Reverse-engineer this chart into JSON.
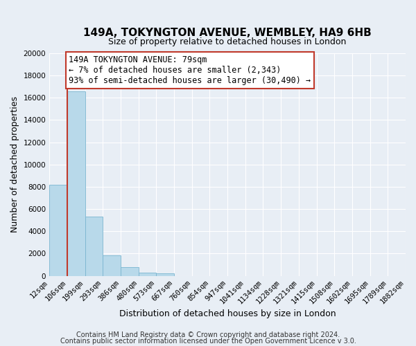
{
  "title": "149A, TOKYNGTON AVENUE, WEMBLEY, HA9 6HB",
  "subtitle": "Size of property relative to detached houses in London",
  "xlabel": "Distribution of detached houses by size in London",
  "ylabel": "Number of detached properties",
  "bar_values": [
    8200,
    16600,
    5300,
    1850,
    800,
    300,
    250,
    0,
    0,
    0,
    0,
    0,
    0,
    0,
    0,
    0,
    0,
    0,
    0,
    0
  ],
  "categories": [
    "12sqm",
    "106sqm",
    "199sqm",
    "293sqm",
    "386sqm",
    "480sqm",
    "573sqm",
    "667sqm",
    "760sqm",
    "854sqm",
    "947sqm",
    "1041sqm",
    "1134sqm",
    "1228sqm",
    "1321sqm",
    "1415sqm",
    "1508sqm",
    "1602sqm",
    "1695sqm",
    "1789sqm",
    "1882sqm"
  ],
  "bar_color": "#b8d9ea",
  "bar_edge_color": "#7ab5d0",
  "vline_color": "#c0392b",
  "annotation_title": "149A TOKYNGTON AVENUE: 79sqm",
  "annotation_line1": "← 7% of detached houses are smaller (2,343)",
  "annotation_line2": "93% of semi-detached houses are larger (30,490) →",
  "annotation_box_edge": "#c0392b",
  "ylim": [
    0,
    20000
  ],
  "yticks": [
    0,
    2000,
    4000,
    6000,
    8000,
    10000,
    12000,
    14000,
    16000,
    18000,
    20000
  ],
  "footer1": "Contains HM Land Registry data © Crown copyright and database right 2024.",
  "footer2": "Contains public sector information licensed under the Open Government Licence v 3.0.",
  "background_color": "#e8eef5",
  "plot_background": "#e8eef5",
  "grid_color": "#ffffff",
  "title_fontsize": 11,
  "subtitle_fontsize": 9,
  "xlabel_fontsize": 9,
  "ylabel_fontsize": 9,
  "tick_fontsize": 7.5,
  "footer_fontsize": 7,
  "annotation_fontsize": 8.5
}
